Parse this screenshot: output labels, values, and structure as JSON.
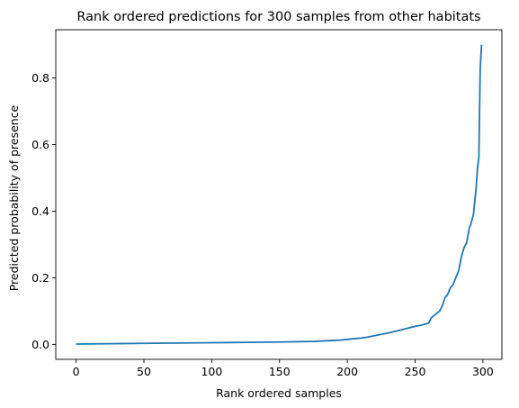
{
  "chart_data": {
    "type": "line",
    "title": "Rank ordered predictions for 300 samples from other habitats",
    "xlabel": "Rank ordered samples",
    "ylabel": "Predicted probability of presence",
    "xlim": [
      -15,
      314
    ],
    "ylim": [
      -0.045,
      0.945
    ],
    "xticks": [
      0,
      50,
      100,
      150,
      200,
      250,
      300
    ],
    "xtick_labels": [
      "0",
      "50",
      "100",
      "150",
      "200",
      "250",
      "300"
    ],
    "yticks": [
      0.0,
      0.2,
      0.4,
      0.6,
      0.8
    ],
    "ytick_labels": [
      "0.0",
      "0.2",
      "0.4",
      "0.6",
      "0.8"
    ],
    "grid": false,
    "line_color": "#1f77b4",
    "series": [
      {
        "x": [
          0,
          25,
          50,
          75,
          100,
          125,
          150,
          175,
          185,
          195,
          200,
          205,
          210,
          215,
          220,
          225,
          230,
          235,
          240,
          245,
          250,
          255,
          260,
          262,
          265,
          268,
          270,
          272,
          274,
          276,
          278,
          280,
          282,
          284,
          286,
          288,
          290,
          291,
          292,
          293,
          294,
          295,
          296,
          297,
          298,
          299
        ],
        "y": [
          0.001,
          0.002,
          0.003,
          0.004,
          0.005,
          0.006,
          0.007,
          0.009,
          0.011,
          0.013,
          0.015,
          0.017,
          0.019,
          0.022,
          0.026,
          0.03,
          0.034,
          0.039,
          0.044,
          0.049,
          0.054,
          0.058,
          0.064,
          0.08,
          0.09,
          0.1,
          0.115,
          0.14,
          0.15,
          0.17,
          0.18,
          0.2,
          0.22,
          0.26,
          0.29,
          0.305,
          0.35,
          0.36,
          0.375,
          0.39,
          0.43,
          0.47,
          0.53,
          0.56,
          0.83,
          0.9
        ]
      }
    ]
  }
}
